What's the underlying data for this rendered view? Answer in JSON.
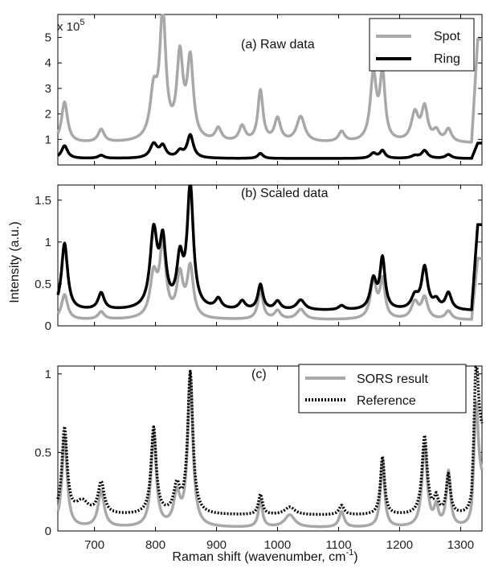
{
  "chart_data": [
    {
      "type": "line",
      "title": "(a) Raw data",
      "multiplier": "x 10",
      "multiplier_exp": "5",
      "xlim": [
        640,
        1335
      ],
      "ylim": [
        0,
        5.9
      ],
      "yticks": [
        1,
        2,
        3,
        4,
        5
      ],
      "ytick_labels": [
        "1",
        "2",
        "3",
        "4",
        "5"
      ],
      "legend_position": "top-right",
      "series": [
        {
          "name": "Spot",
          "color": "#a8a8a8",
          "style": "solid",
          "baseline": 0.85,
          "end_value": 4.9,
          "peaks": [
            [
              651,
              1.6,
              6
            ],
            [
              711,
              0.5,
              6
            ],
            [
              797,
              1.8,
              7
            ],
            [
              812,
              4.9,
              6
            ],
            [
              840,
              3.2,
              6
            ],
            [
              857,
              3.1,
              6
            ],
            [
              903,
              0.5,
              6
            ],
            [
              942,
              0.6,
              6
            ],
            [
              972,
              2.0,
              5
            ],
            [
              1000,
              0.9,
              6
            ],
            [
              1038,
              1.0,
              8
            ],
            [
              1105,
              0.4,
              6
            ],
            [
              1157,
              2.6,
              6
            ],
            [
              1172,
              2.6,
              5
            ],
            [
              1225,
              1.1,
              7
            ],
            [
              1241,
              1.3,
              6
            ],
            [
              1260,
              0.4,
              6
            ],
            [
              1280,
              0.5,
              6
            ]
          ]
        },
        {
          "name": "Ring",
          "color": "#000000",
          "style": "solid",
          "baseline": 0.25,
          "end_value": 0.85,
          "peaks": [
            [
              651,
              0.5,
              6
            ],
            [
              711,
              0.12,
              6
            ],
            [
              797,
              0.55,
              7
            ],
            [
              812,
              0.45,
              6
            ],
            [
              840,
              0.25,
              6
            ],
            [
              857,
              0.9,
              6
            ],
            [
              972,
              0.2,
              5
            ],
            [
              1157,
              0.2,
              6
            ],
            [
              1172,
              0.3,
              5
            ],
            [
              1225,
              0.1,
              7
            ],
            [
              1241,
              0.3,
              6
            ],
            [
              1280,
              0.15,
              6
            ]
          ]
        }
      ]
    },
    {
      "type": "line",
      "title": "(b) Scaled data",
      "ylabel": "Intensity (a.u.)",
      "xlim": [
        640,
        1335
      ],
      "ylim": [
        0,
        1.68
      ],
      "yticks": [
        0,
        0.5,
        1,
        1.5
      ],
      "ytick_labels": [
        "0",
        "0.5",
        "1",
        "1.5"
      ],
      "series": [
        {
          "name": "Spot",
          "color": "#a8a8a8",
          "style": "solid",
          "baseline": 0.07,
          "end_value": 0.8,
          "peaks": [
            [
              651,
              0.3,
              6
            ],
            [
              711,
              0.09,
              6
            ],
            [
              797,
              0.5,
              7
            ],
            [
              812,
              0.85,
              6
            ],
            [
              840,
              0.5,
              6
            ],
            [
              857,
              0.6,
              6
            ],
            [
              972,
              0.35,
              5
            ],
            [
              1000,
              0.1,
              6
            ],
            [
              1038,
              0.12,
              8
            ],
            [
              1157,
              0.45,
              6
            ],
            [
              1172,
              0.45,
              5
            ],
            [
              1225,
              0.2,
              7
            ],
            [
              1241,
              0.25,
              6
            ],
            [
              1280,
              0.1,
              6
            ]
          ]
        },
        {
          "name": "Ring",
          "color": "#000000",
          "style": "solid",
          "baseline": 0.18,
          "end_value": 1.2,
          "peaks": [
            [
              651,
              0.8,
              6
            ],
            [
              711,
              0.2,
              6
            ],
            [
              797,
              0.9,
              7
            ],
            [
              812,
              0.75,
              6
            ],
            [
              840,
              0.55,
              6
            ],
            [
              857,
              1.45,
              6
            ],
            [
              903,
              0.12,
              6
            ],
            [
              942,
              0.1,
              6
            ],
            [
              972,
              0.3,
              5
            ],
            [
              1000,
              0.1,
              6
            ],
            [
              1038,
              0.12,
              8
            ],
            [
              1105,
              0.05,
              6
            ],
            [
              1157,
              0.35,
              6
            ],
            [
              1172,
              0.6,
              5
            ],
            [
              1225,
              0.15,
              7
            ],
            [
              1241,
              0.5,
              6
            ],
            [
              1260,
              0.1,
              6
            ],
            [
              1280,
              0.2,
              6
            ]
          ]
        }
      ]
    },
    {
      "type": "line",
      "title": "(c)",
      "xlabel": "Raman shift (wavenumber, cm",
      "xlabel_sup": "-1",
      "xlabel_tail": ")",
      "xlim": [
        640,
        1335
      ],
      "ylim": [
        0,
        1.05
      ],
      "xticks": [
        700,
        800,
        900,
        1000,
        1100,
        1200,
        1300
      ],
      "xtick_labels": [
        "700",
        "800",
        "900",
        "1000",
        "1100",
        "1200",
        "1300"
      ],
      "yticks": [
        0,
        0.5,
        1
      ],
      "ytick_labels": [
        "0",
        "0.5",
        "1"
      ],
      "legend_position": "top-right",
      "series": [
        {
          "name": "SORS result",
          "color": "#a8a8a8",
          "style": "solid",
          "baseline": 0.02,
          "end_value": 0.3,
          "peaks": [
            [
              651,
              0.58,
              5
            ],
            [
              711,
              0.23,
              6
            ],
            [
              797,
              0.6,
              5
            ],
            [
              835,
              0.2,
              6
            ],
            [
              857,
              0.96,
              5
            ],
            [
              972,
              0.17,
              4
            ],
            [
              1020,
              0.08,
              10
            ],
            [
              1105,
              0.1,
              5
            ],
            [
              1172,
              0.43,
              4
            ],
            [
              1241,
              0.52,
              5
            ],
            [
              1260,
              0.12,
              4
            ],
            [
              1280,
              0.35,
              4
            ],
            [
              1325,
              0.6,
              4
            ]
          ]
        },
        {
          "name": "Reference",
          "color": "#000000",
          "style": "dotted",
          "baseline": 0.1,
          "end_value": 0.6,
          "peaks": [
            [
              651,
              0.55,
              5
            ],
            [
              680,
              0.08,
              12
            ],
            [
              711,
              0.2,
              6
            ],
            [
              797,
              0.55,
              5
            ],
            [
              835,
              0.17,
              6
            ],
            [
              857,
              0.9,
              5
            ],
            [
              972,
              0.13,
              4
            ],
            [
              1020,
              0.05,
              10
            ],
            [
              1105,
              0.06,
              5
            ],
            [
              1172,
              0.37,
              4
            ],
            [
              1241,
              0.5,
              5
            ],
            [
              1260,
              0.1,
              4
            ],
            [
              1280,
              0.25,
              4
            ],
            [
              1325,
              0.6,
              4
            ]
          ]
        }
      ]
    }
  ]
}
